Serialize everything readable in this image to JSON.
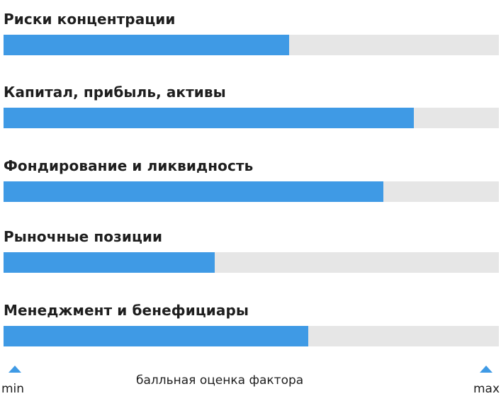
{
  "chart_data": {
    "type": "bar",
    "orientation": "horizontal",
    "categories": [
      "Риски концентрации",
      "Капитал, прибыль, активы",
      "Фондирование и ликвидность",
      "Рыночные позиции",
      "Менеджмент и бенефициары"
    ],
    "values": [
      0.577,
      0.828,
      0.767,
      0.426,
      0.615
    ],
    "ylim": [
      0,
      1
    ],
    "xlabel": "балльная оценка фактора",
    "min_label": "min",
    "max_label": "max",
    "grid": false,
    "colors": {
      "bar": "#3f9ae5",
      "track": "#e6e6e6",
      "marker": "#3f9ae5"
    }
  }
}
